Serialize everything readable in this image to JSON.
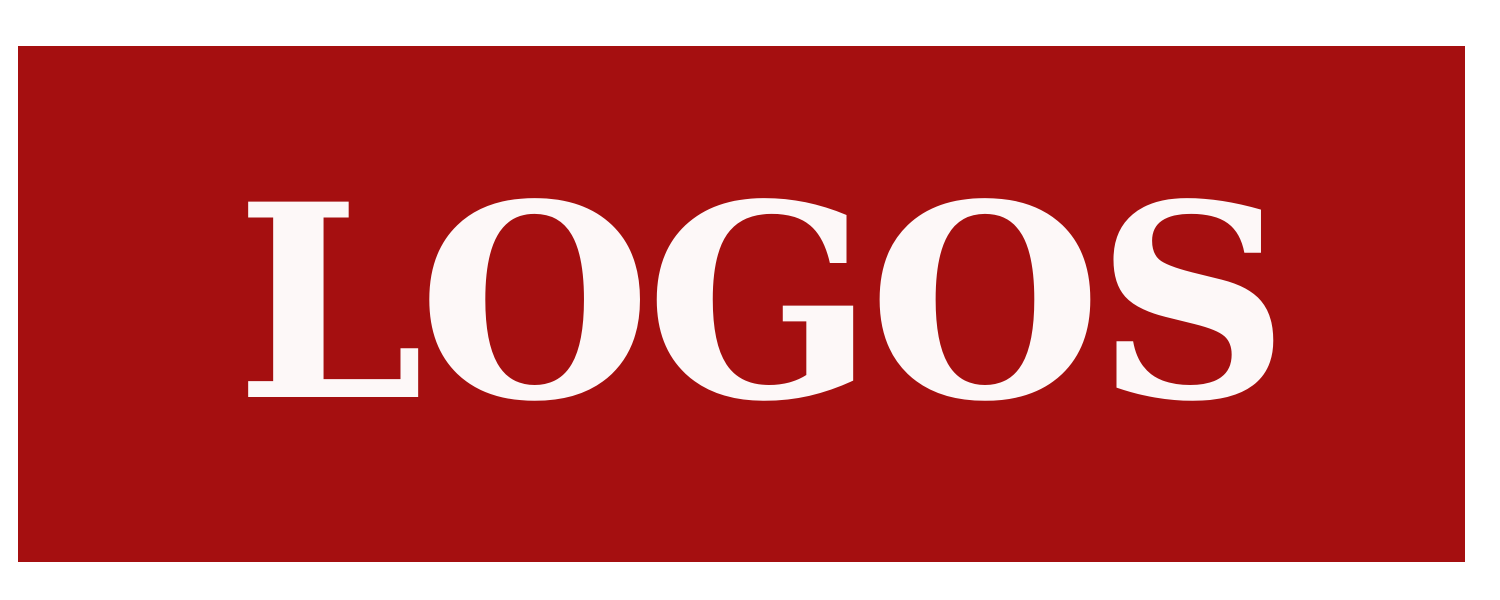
{
  "logo": {
    "text": "LOGOS",
    "background_color": "#a50f10",
    "text_color": "#fdf8f8"
  }
}
